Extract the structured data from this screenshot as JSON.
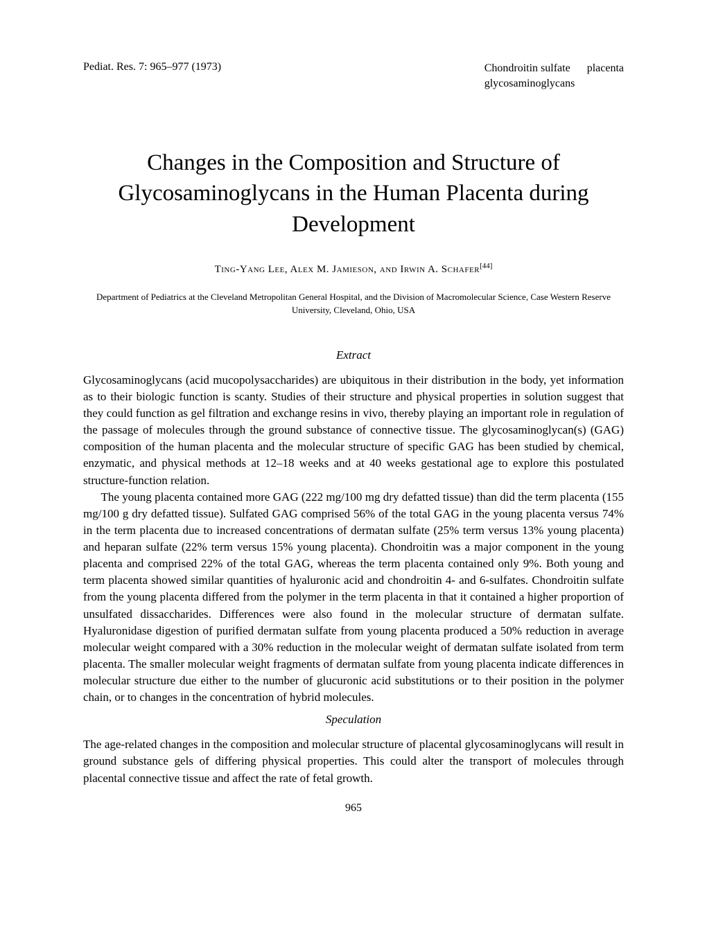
{
  "header": {
    "citation": "Pediat. Res. 7: 965–977 (1973)",
    "keywords_line1": "Chondroitin sulfate      placenta",
    "keywords_line2": "glycosaminoglycans"
  },
  "title": "Changes in the Composition and Structure of Glycosaminoglycans in the Human Placenta during Development",
  "authors": {
    "names": "Ting-Yang Lee, Alex M. Jamieson, and Irwin A. Schafer",
    "ref": "[44]"
  },
  "affiliation": "Department of Pediatrics at the Cleveland Metropolitan General Hospital, and the Division of Macromolecular Science, Case Western Reserve University, Cleveland, Ohio, USA",
  "sections": {
    "extract_heading": "Extract",
    "extract_p1": "Glycosaminoglycans (acid mucopolysaccharides) are ubiquitous in their distribution in the body, yet information as to their biologic function is scanty. Studies of their structure and physical properties in solution suggest that they could function as gel filtration and exchange resins in vivo, thereby playing an important role in regulation of the passage of molecules through the ground substance of connective tissue. The glycosaminoglycan(s) (GAG) composition of the human placenta and the molecular structure of specific GAG has been studied by chemical, enzymatic, and physical methods at 12–18 weeks and at 40 weeks gestational age to explore this postulated structure-function relation.",
    "extract_p2": "The young placenta contained more GAG (222 mg/100 mg dry defatted tissue) than did the term placenta (155 mg/100 g dry defatted tissue). Sulfated GAG comprised 56% of the total GAG in the young placenta versus 74% in the term placenta due to increased concentrations of dermatan sulfate (25% term versus 13% young placenta) and heparan sulfate (22% term versus 15% young placenta). Chondroitin was a major component in the young placenta and comprised 22% of the total GAG, whereas the term placenta contained only 9%. Both young and term placenta showed similar quantities of hyaluronic acid and chondroitin 4- and 6-sulfates. Chondroitin sulfate from the young placenta differed from the polymer in the term placenta in that it contained a higher proportion of unsulfated dissaccharides. Differences were also found in the molecular structure of dermatan sulfate. Hyaluronidase digestion of purified dermatan sulfate from young placenta produced a 50% reduction in average molecular weight compared with a 30% reduction in the molecular weight of dermatan sulfate isolated from term placenta. The smaller molecular weight fragments of dermatan sulfate from young placenta indicate differences in molecular structure due either to the number of glucuronic acid substitutions or to their position in the polymer chain, or to changes in the concentration of hybrid molecules.",
    "speculation_heading": "Speculation",
    "speculation_p1": "The age-related changes in the composition and molecular structure of placental glycosaminoglycans will result in ground substance gels of differing physical properties. This could alter the transport of molecules through placental connective tissue and affect the rate of fetal growth."
  },
  "page_number": "965",
  "style": {
    "font_family": "Times New Roman",
    "background_color": "#ffffff",
    "text_color": "#000000",
    "title_fontsize": 33,
    "body_fontsize": 17,
    "author_fontsize": 15,
    "affiliation_fontsize": 13,
    "header_fontsize": 16
  }
}
